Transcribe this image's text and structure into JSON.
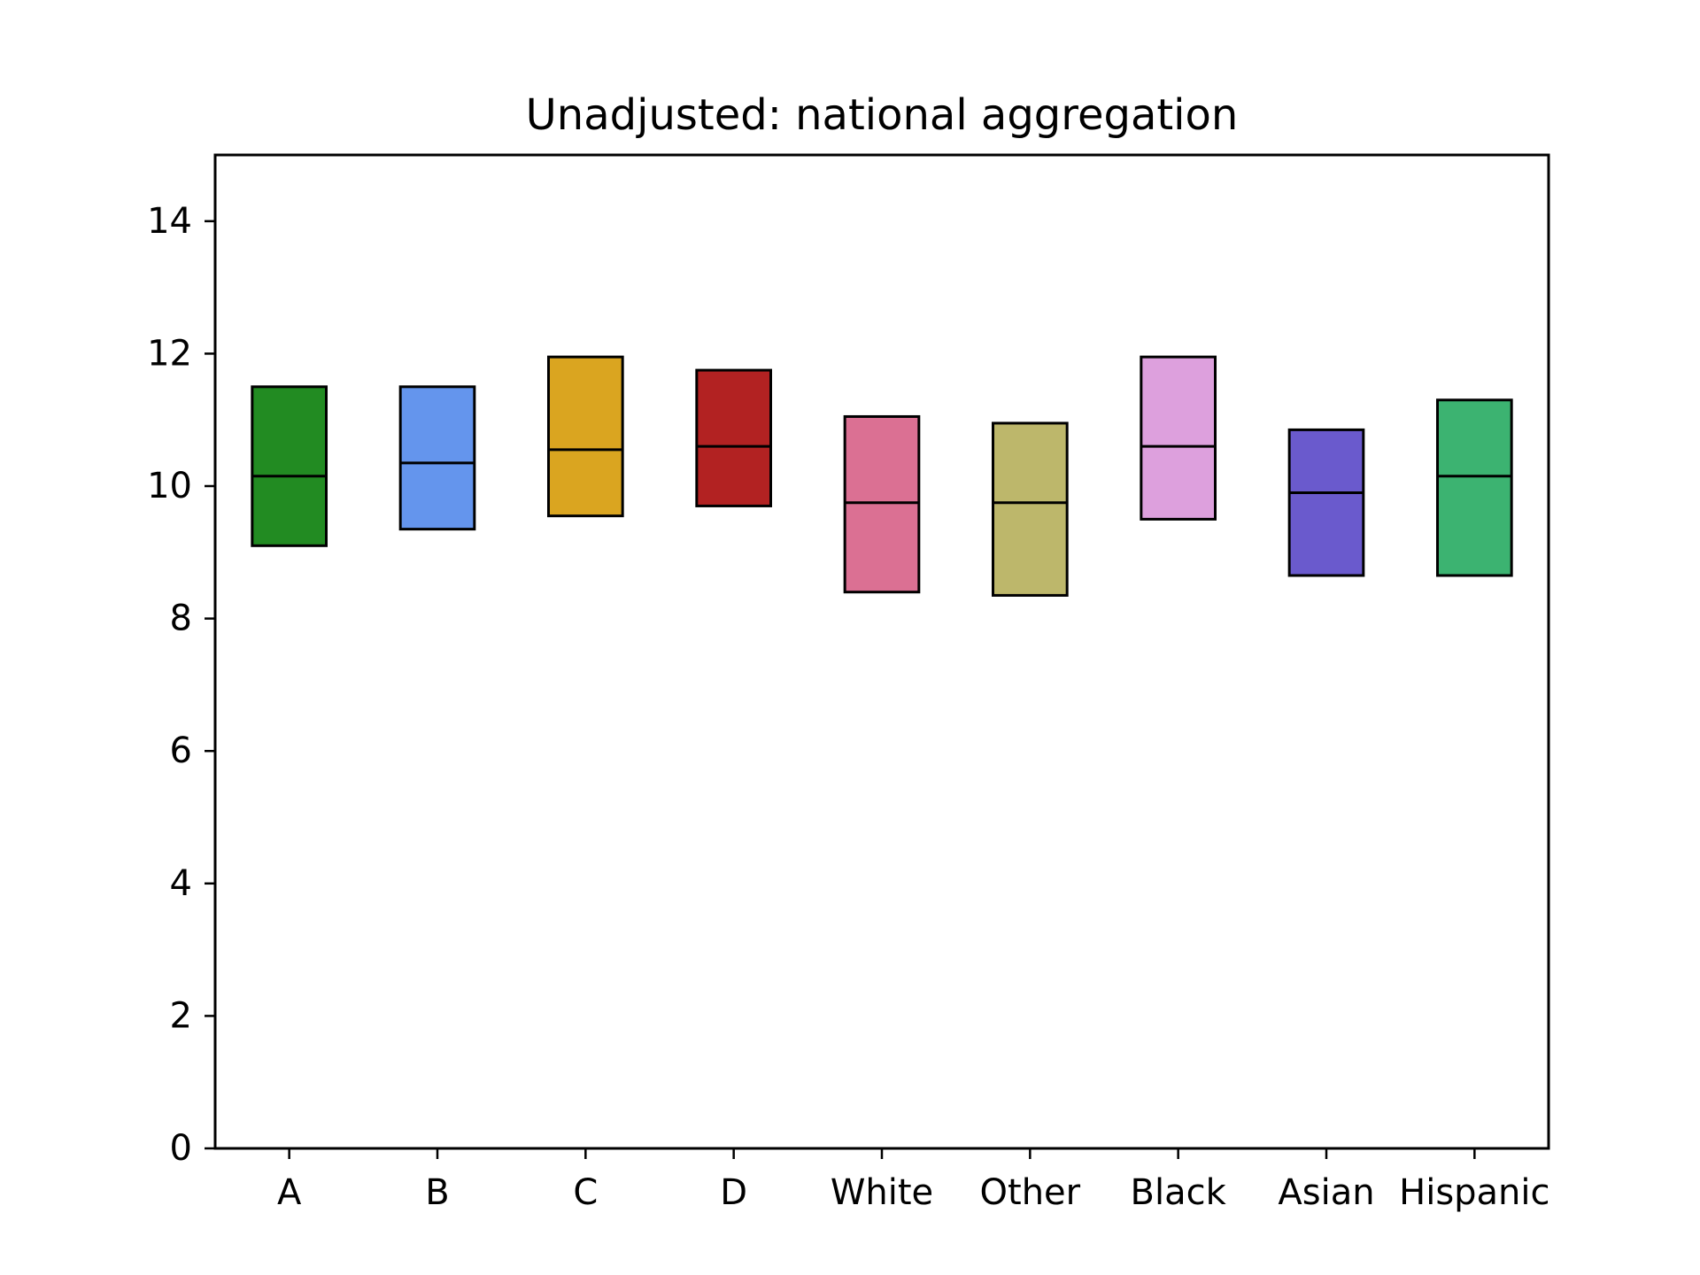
{
  "chart_data": {
    "type": "box",
    "title": "Unadjusted: national aggregation",
    "xlabel": "",
    "ylabel": "",
    "ylim": [
      0,
      15
    ],
    "yticks": [
      0,
      2,
      4,
      6,
      8,
      10,
      12,
      14
    ],
    "categories": [
      "A",
      "B",
      "C",
      "D",
      "White",
      "Other",
      "Black",
      "Asian",
      "Hispanic"
    ],
    "boxes": [
      {
        "label": "A",
        "low": 9.1,
        "median": 10.15,
        "high": 11.5,
        "color": "#228B22"
      },
      {
        "label": "B",
        "low": 9.35,
        "median": 10.35,
        "high": 11.5,
        "color": "#6495ED"
      },
      {
        "label": "C",
        "low": 9.55,
        "median": 10.55,
        "high": 11.95,
        "color": "#DAA520"
      },
      {
        "label": "D",
        "low": 9.7,
        "median": 10.6,
        "high": 11.75,
        "color": "#B22222"
      },
      {
        "label": "White",
        "low": 8.4,
        "median": 9.75,
        "high": 11.05,
        "color": "#DB7093"
      },
      {
        "label": "Other",
        "low": 8.35,
        "median": 9.75,
        "high": 10.95,
        "color": "#BDB76B"
      },
      {
        "label": "Black",
        "low": 9.5,
        "median": 10.6,
        "high": 11.95,
        "color": "#DDA0DD"
      },
      {
        "label": "Asian",
        "low": 8.65,
        "median": 9.9,
        "high": 10.85,
        "color": "#6A5ACD"
      },
      {
        "label": "Hispanic",
        "low": 8.65,
        "median": 10.15,
        "high": 11.3,
        "color": "#3CB371"
      }
    ],
    "grid": false,
    "legend": "none"
  }
}
